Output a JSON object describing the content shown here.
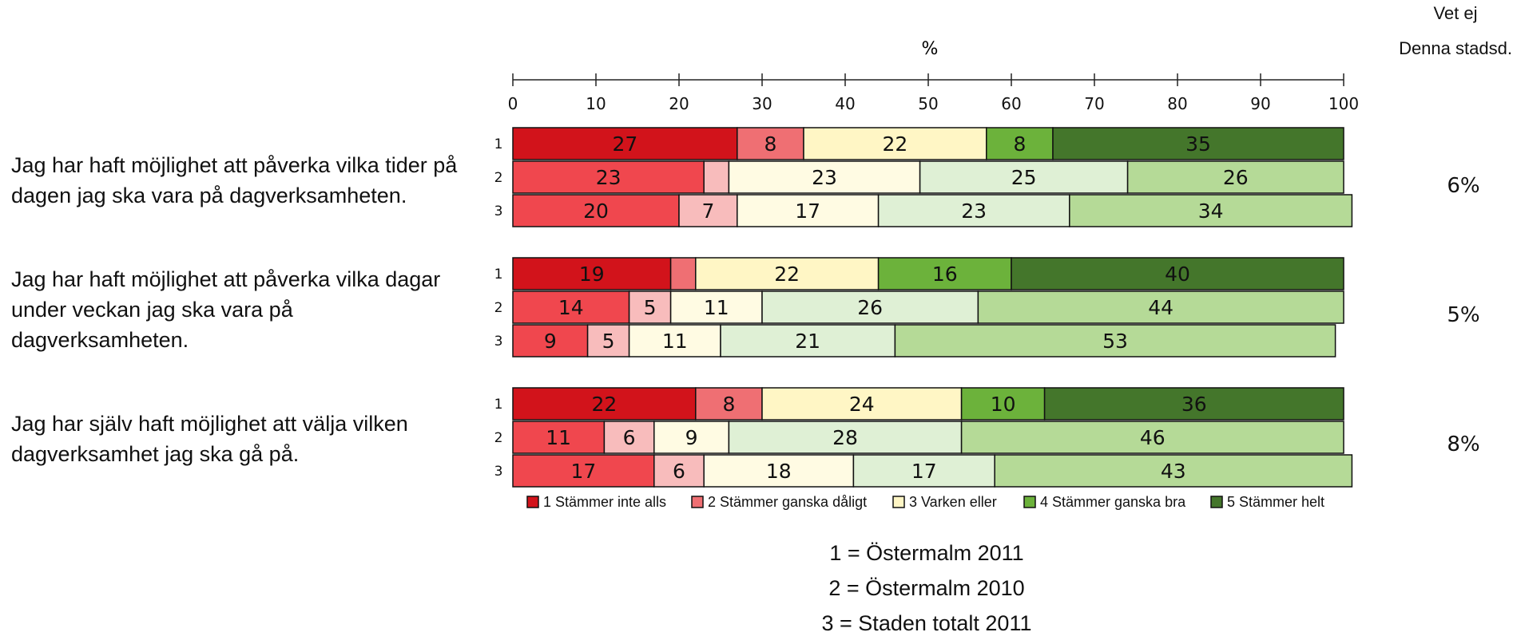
{
  "chart_data": {
    "type": "bar",
    "orientation": "horizontal",
    "stacked": true,
    "axis_title": "%",
    "xlim": [
      0,
      100
    ],
    "x_ticks": [
      "0",
      "10",
      "20",
      "30",
      "40",
      "50",
      "60",
      "70",
      "80",
      "90",
      "100"
    ],
    "right_header": [
      "Vet ej",
      "Denna stadsd."
    ],
    "legend": [
      {
        "label": "1 Stämmer inte alls",
        "color": "#D2131B"
      },
      {
        "label": "2 Stämmer ganska dåligt",
        "color": "#EF6F73"
      },
      {
        "label": "3 Varken eller",
        "color": "#FFF6C5"
      },
      {
        "label": "4 Stämmer ganska bra",
        "color": "#6CB23B"
      },
      {
        "label": "5 Stämmer helt",
        "color": "#44762B"
      }
    ],
    "groups": [
      {
        "question": "Jag har haft möjlighet att påverka vilka tider på dagen jag ska vara på dagverksamheten.",
        "dont_know": "6%",
        "rows": [
          {
            "label": "1",
            "values": [
              27,
              8,
              22,
              8,
              35
            ],
            "colors": [
              "#D2131B",
              "#EF6F73",
              "#FFF6C5",
              "#6CB23B",
              "#44762B"
            ],
            "labels": [
              "27",
              "8",
              "22",
              "8",
              "35"
            ]
          },
          {
            "label": "2",
            "values": [
              23,
              3,
              23,
              25,
              26
            ],
            "colors": [
              "#F0474E",
              "#F8BCBC",
              "#FFFBE3",
              "#DFF0D5",
              "#B5DA97"
            ],
            "labels": [
              "23",
              "",
              "23",
              "25",
              "26"
            ]
          },
          {
            "label": "3",
            "values": [
              20,
              7,
              17,
              23,
              34
            ],
            "colors": [
              "#F0474E",
              "#F8BCBC",
              "#FFFBE3",
              "#DFF0D5",
              "#B5DA97"
            ],
            "labels": [
              "20",
              "7",
              "17",
              "23",
              "34"
            ]
          }
        ]
      },
      {
        "question": "Jag har haft möjlighet att påverka vilka dagar under veckan jag ska vara på dagverksamheten.",
        "dont_know": "5%",
        "rows": [
          {
            "label": "1",
            "values": [
              19,
              3,
              22,
              16,
              40
            ],
            "colors": [
              "#D2131B",
              "#EF6F73",
              "#FFF6C5",
              "#6CB23B",
              "#44762B"
            ],
            "labels": [
              "19",
              "",
              "22",
              "16",
              "40"
            ]
          },
          {
            "label": "2",
            "values": [
              14,
              5,
              11,
              26,
              44
            ],
            "colors": [
              "#F0474E",
              "#F8BCBC",
              "#FFFBE3",
              "#DFF0D5",
              "#B5DA97"
            ],
            "labels": [
              "14",
              "5",
              "11",
              "26",
              "44"
            ]
          },
          {
            "label": "3",
            "values": [
              9,
              5,
              11,
              21,
              53
            ],
            "colors": [
              "#F0474E",
              "#F8BCBC",
              "#FFFBE3",
              "#DFF0D5",
              "#B5DA97"
            ],
            "labels": [
              "9",
              "5",
              "11",
              "21",
              "53"
            ]
          }
        ]
      },
      {
        "question": "Jag har själv haft möjlighet att välja vilken dagverksamhet jag ska gå på.",
        "dont_know": "8%",
        "rows": [
          {
            "label": "1",
            "values": [
              22,
              8,
              24,
              10,
              36
            ],
            "colors": [
              "#D2131B",
              "#EF6F73",
              "#FFF6C5",
              "#6CB23B",
              "#44762B"
            ],
            "labels": [
              "22",
              "8",
              "24",
              "10",
              "36"
            ]
          },
          {
            "label": "2",
            "values": [
              11,
              6,
              9,
              28,
              46
            ],
            "colors": [
              "#F0474E",
              "#F8BCBC",
              "#FFFBE3",
              "#DFF0D5",
              "#B5DA97"
            ],
            "labels": [
              "11",
              "6",
              "9",
              "28",
              "46"
            ]
          },
          {
            "label": "3",
            "values": [
              17,
              6,
              18,
              17,
              43
            ],
            "colors": [
              "#F0474E",
              "#F8BCBC",
              "#FFFBE3",
              "#DFF0D5",
              "#B5DA97"
            ],
            "labels": [
              "17",
              "6",
              "18",
              "17",
              "43"
            ]
          }
        ]
      }
    ],
    "footnotes": [
      "1 = Östermalm 2011",
      "2 = Östermalm 2010",
      "3 = Staden totalt 2011"
    ]
  }
}
